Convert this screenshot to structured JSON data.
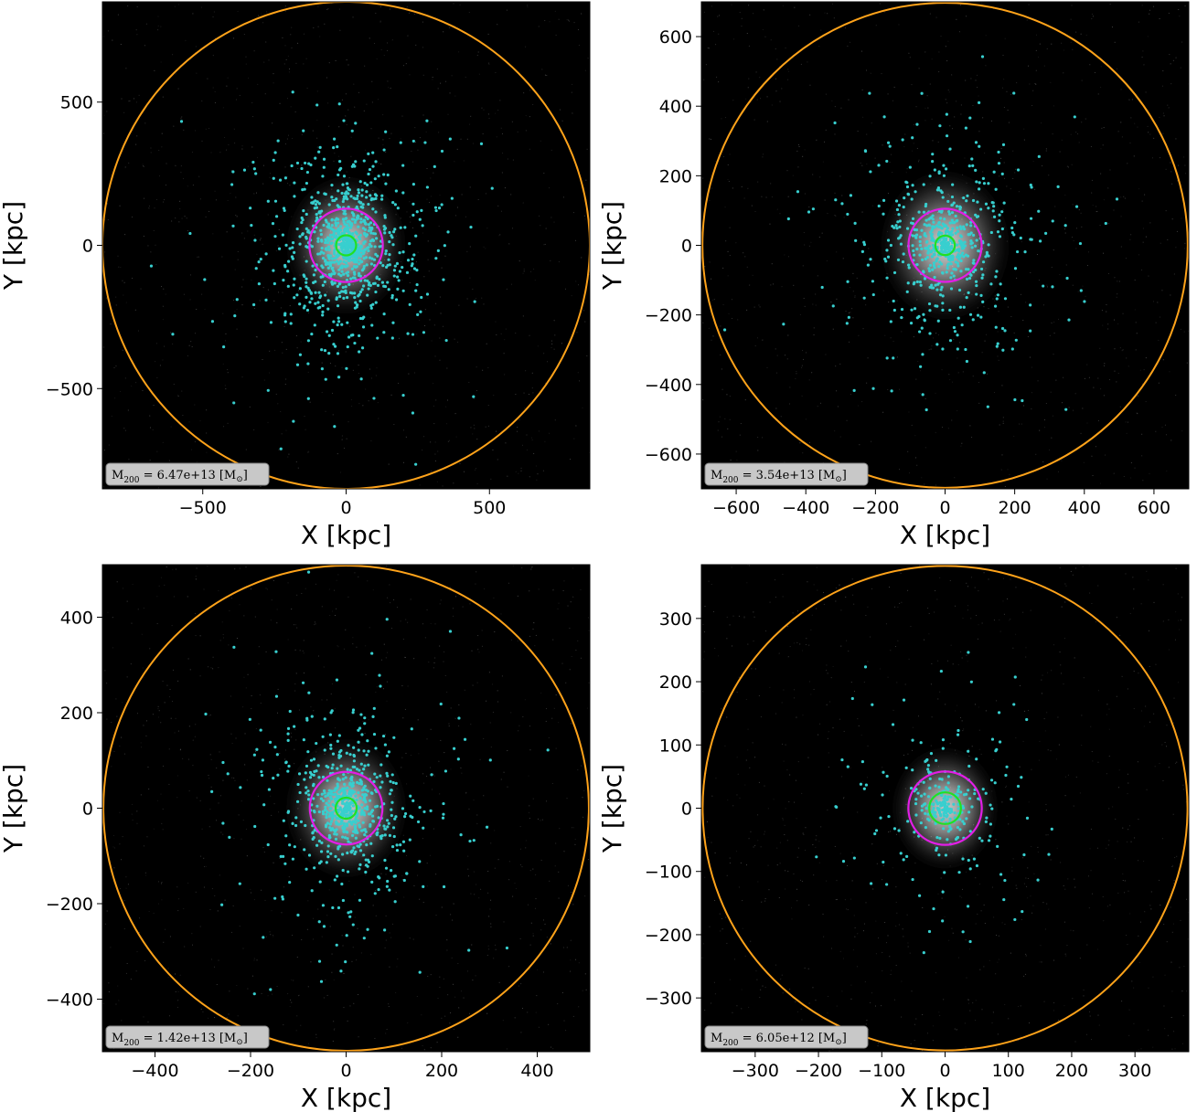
{
  "colors": {
    "background": "#000000",
    "halo_glow": "#e8e8e8",
    "galaxies": "#38cfcf",
    "r200_circle": "#ffa31a",
    "r500_like_circle": "#e21ee6",
    "inner_circle": "#22e022",
    "badge_fill": "#c8c8c8"
  },
  "chart_data": [
    {
      "type": "scatter",
      "panel": "top-left",
      "xlabel": "X [kpc]",
      "ylabel": "Y [kpc]",
      "xlim": [
        -850,
        850
      ],
      "ylim": [
        -850,
        850
      ],
      "xticks": [
        -500,
        0,
        500
      ],
      "yticks": [
        -500,
        0,
        500
      ],
      "xtick_labels": [
        "−500",
        "0",
        "500"
      ],
      "ytick_labels": [
        "−500",
        "0",
        "500"
      ],
      "circles_radius_kpc": {
        "outer": 850,
        "middle": 128,
        "inner": 35
      },
      "halo_spread_kpc": 190,
      "galaxy_count": 1000,
      "annotation": "M200 = 6.47e+13 [M☉]",
      "annotation_parts": {
        "symbol": "M",
        "sub": "200",
        "value": " = 6.47e+13 [M",
        "sun": "⊙",
        "close": "]"
      }
    },
    {
      "type": "scatter",
      "panel": "top-right",
      "xlabel": "X [kpc]",
      "ylabel": "Y [kpc]",
      "xlim": [
        -700,
        700
      ],
      "ylim": [
        -700,
        700
      ],
      "xticks": [
        -600,
        -400,
        -200,
        0,
        200,
        400,
        600
      ],
      "yticks": [
        -600,
        -400,
        -200,
        0,
        200,
        400,
        600
      ],
      "xtick_labels": [
        "−600",
        "−400",
        "−200",
        "0",
        "200",
        "400",
        "600"
      ],
      "ytick_labels": [
        "−600",
        "−400",
        "−200",
        "0",
        "200",
        "400",
        "600"
      ],
      "circles_radius_kpc": {
        "outer": 697,
        "middle": 105,
        "inner": 28
      },
      "halo_spread_kpc": 170,
      "galaxy_count": 650,
      "annotation": "M200 = 3.54e+13 [M☉]",
      "annotation_parts": {
        "symbol": "M",
        "sub": "200",
        "value": " = 3.54e+13 [M",
        "sun": "⊙",
        "close": "]"
      }
    },
    {
      "type": "scatter",
      "panel": "bottom-left",
      "xlabel": "X [kpc]",
      "ylabel": "Y [kpc]",
      "xlim": [
        -510,
        510
      ],
      "ylim": [
        -510,
        510
      ],
      "xticks": [
        -400,
        -200,
        0,
        200,
        400
      ],
      "yticks": [
        -400,
        -200,
        0,
        200,
        400
      ],
      "xtick_labels": [
        "−400",
        "−200",
        "0",
        "200",
        "400"
      ],
      "ytick_labels": [
        "−400",
        "−200",
        "0",
        "200",
        "400"
      ],
      "circles_radius_kpc": {
        "outer": 508,
        "middle": 76,
        "inner": 22
      },
      "halo_spread_kpc": 115,
      "galaxy_count": 700,
      "annotation": "M200 = 1.42e+13 [M☉]",
      "annotation_parts": {
        "symbol": "M",
        "sub": "200",
        "value": " = 1.42e+13 [M",
        "sun": "⊙",
        "close": "]"
      }
    },
    {
      "type": "scatter",
      "panel": "bottom-right",
      "xlabel": "X [kpc]",
      "ylabel": "Y [kpc]",
      "xlim": [
        -385,
        385
      ],
      "ylim": [
        -385,
        385
      ],
      "xticks": [
        -300,
        -200,
        -100,
        0,
        100,
        200,
        300
      ],
      "yticks": [
        -300,
        -200,
        -100,
        0,
        100,
        200,
        300
      ],
      "xtick_labels": [
        "−300",
        "−200",
        "−100",
        "0",
        "100",
        "200",
        "300"
      ],
      "ytick_labels": [
        "−300",
        "−200",
        "−100",
        "0",
        "100",
        "200",
        "300"
      ],
      "circles_radius_kpc": {
        "outer": 383,
        "middle": 58,
        "inner": 25
      },
      "halo_spread_kpc": 75,
      "galaxy_count": 300,
      "annotation": "M200 = 6.05e+12 [M☉]",
      "annotation_parts": {
        "symbol": "M",
        "sub": "200",
        "value": " = 6.05e+12 [M",
        "sun": "⊙",
        "close": "]"
      }
    }
  ]
}
